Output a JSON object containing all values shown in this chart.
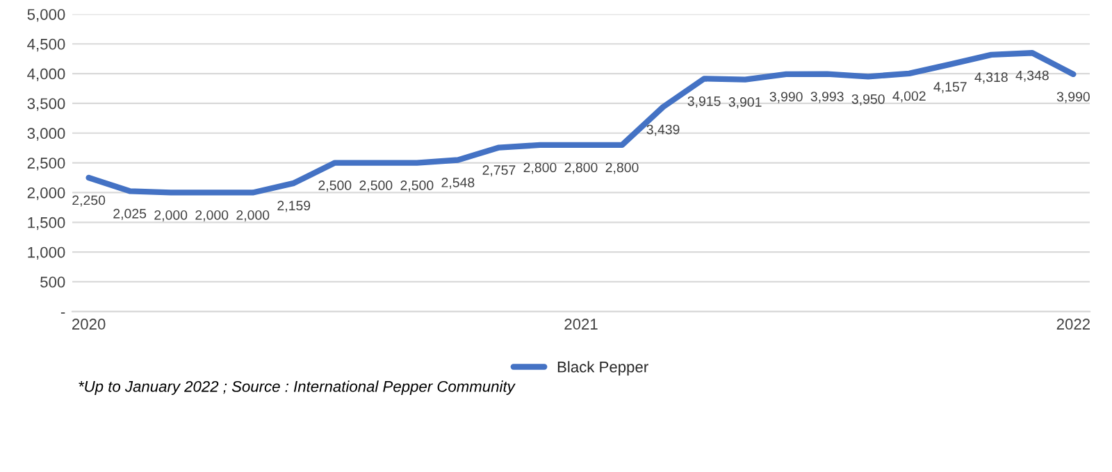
{
  "chart_data": {
    "type": "line",
    "categories": [
      "2020",
      null,
      null,
      null,
      null,
      null,
      null,
      null,
      null,
      null,
      null,
      null,
      "2021",
      null,
      null,
      null,
      null,
      null,
      null,
      null,
      null,
      null,
      null,
      null,
      "2022"
    ],
    "series": [
      {
        "name": "Black Pepper",
        "color": "#4472c4",
        "values": [
          2250,
          2025,
          2000,
          2000,
          2000,
          2159,
          2500,
          2500,
          2500,
          2548,
          2757,
          2800,
          2800,
          2800,
          3439,
          3915,
          3901,
          3990,
          3993,
          3950,
          4002,
          4157,
          4318,
          4348,
          3990
        ],
        "value_labels": [
          "2,250",
          "2,025",
          "2,000",
          "2,000",
          "2,000",
          "2,159",
          "2,500",
          "2,500",
          "2,500",
          "2,548",
          "2,757",
          "2,800",
          "2,800",
          "2,800",
          "3,439",
          "3,915",
          "3,901",
          "3,990",
          "3,993",
          "3,950",
          "4,002",
          "4,157",
          "4,318",
          "4,348",
          "3,990"
        ]
      }
    ],
    "ylim": [
      0,
      5000
    ],
    "yticks": [
      {
        "value": 0,
        "label": "-"
      },
      {
        "value": 500,
        "label": "500"
      },
      {
        "value": 1000,
        "label": "1,000"
      },
      {
        "value": 1500,
        "label": "1,500"
      },
      {
        "value": 2000,
        "label": "2,000"
      },
      {
        "value": 2500,
        "label": "2,500"
      },
      {
        "value": 3000,
        "label": "3,000"
      },
      {
        "value": 3500,
        "label": "3,500"
      },
      {
        "value": 4000,
        "label": "4,000"
      },
      {
        "value": 4500,
        "label": "4,500"
      },
      {
        "value": 5000,
        "label": "5,000"
      }
    ],
    "grid": "y",
    "legend": "bottom",
    "marker": "none",
    "line_style": "solid",
    "annotations": [
      "*Up to January 2022 ; Source : International Pepper Community"
    ]
  }
}
